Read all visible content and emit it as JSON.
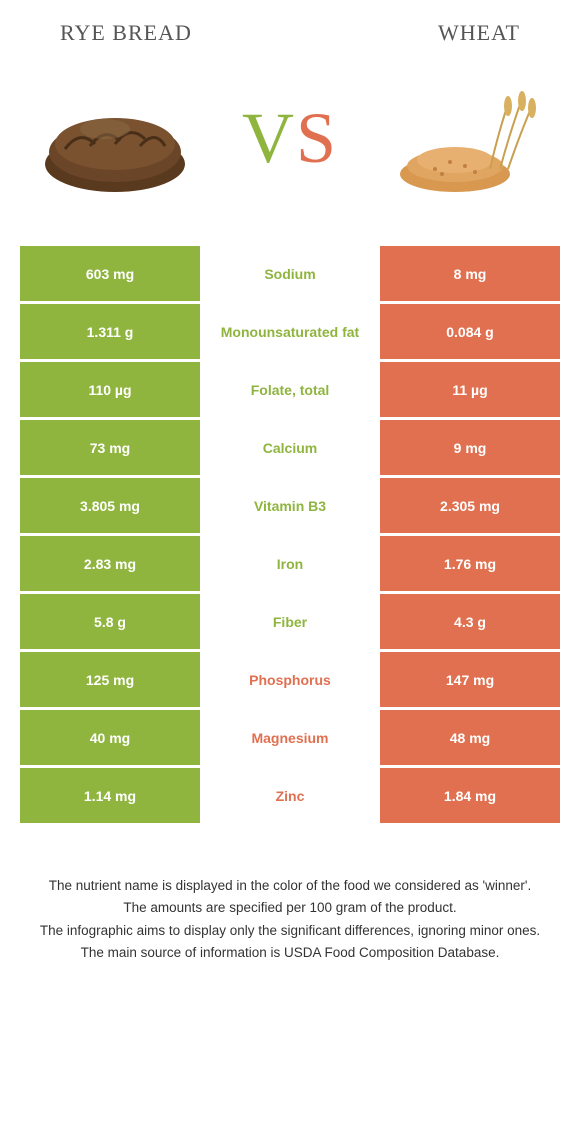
{
  "colors": {
    "green": "#8fb53f",
    "orange": "#e07050",
    "bg": "#ffffff",
    "text": "#333333"
  },
  "left_food": "RYE BREAD",
  "right_food": "WHEAT",
  "vs": {
    "v": "V",
    "s": "S"
  },
  "rows": [
    {
      "left": "603 mg",
      "label": "Sodium",
      "right": "8 mg",
      "winner": "green"
    },
    {
      "left": "1.311 g",
      "label": "Monounsaturated fat",
      "right": "0.084 g",
      "winner": "green"
    },
    {
      "left": "110 µg",
      "label": "Folate, total",
      "right": "11 µg",
      "winner": "green"
    },
    {
      "left": "73 mg",
      "label": "Calcium",
      "right": "9 mg",
      "winner": "green"
    },
    {
      "left": "3.805 mg",
      "label": "Vitamin B3",
      "right": "2.305 mg",
      "winner": "green"
    },
    {
      "left": "2.83 mg",
      "label": "Iron",
      "right": "1.76 mg",
      "winner": "green"
    },
    {
      "left": "5.8 g",
      "label": "Fiber",
      "right": "4.3 g",
      "winner": "green"
    },
    {
      "left": "125 mg",
      "label": "Phosphorus",
      "right": "147 mg",
      "winner": "orange"
    },
    {
      "left": "40 mg",
      "label": "Magnesium",
      "right": "48 mg",
      "winner": "orange"
    },
    {
      "left": "1.14 mg",
      "label": "Zinc",
      "right": "1.84 mg",
      "winner": "orange"
    }
  ],
  "footer": [
    "The nutrient name is displayed in the color of the food we considered as 'winner'.",
    "The amounts are specified per 100 gram of the product.",
    "The infographic aims to display only the significant differences, ignoring minor ones.",
    "The main source of information is USDA Food Composition Database."
  ]
}
